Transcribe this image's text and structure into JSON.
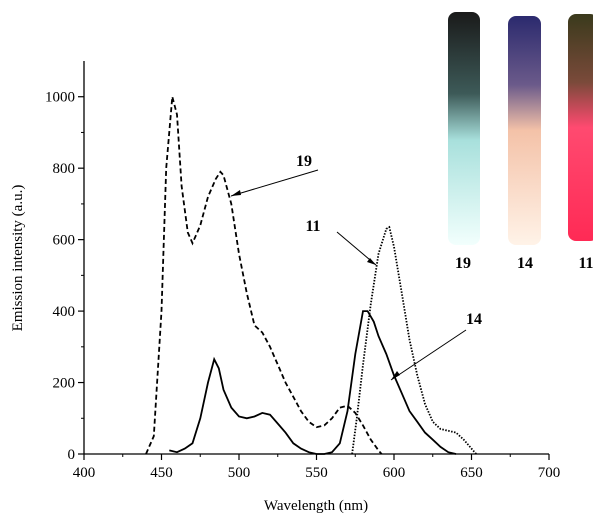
{
  "chart_data": {
    "type": "line",
    "x_label": "Wavelength (nm)",
    "y_label": "Emission intensity (a.u.)",
    "xlim": [
      400,
      700
    ],
    "ylim": [
      0,
      1100
    ],
    "xticks": [
      400,
      450,
      500,
      550,
      600,
      650,
      700
    ],
    "yticks": [
      0,
      200,
      400,
      600,
      800,
      1000
    ],
    "inset_labels": [
      "19",
      "14",
      "11"
    ],
    "series": [
      {
        "name": "19",
        "color": "#000000",
        "dash": "dashed",
        "x": [
          440,
          445,
          450,
          453,
          457,
          460,
          463,
          467,
          470,
          475,
          480,
          485,
          488,
          490,
          495,
          500,
          505,
          510,
          515,
          520,
          525,
          530,
          535,
          540,
          545,
          550,
          555,
          560,
          565,
          570,
          575,
          580,
          585,
          590,
          592
        ],
        "values": [
          0,
          50,
          400,
          800,
          1000,
          950,
          750,
          620,
          590,
          640,
          720,
          770,
          790,
          780,
          700,
          560,
          450,
          360,
          340,
          300,
          250,
          200,
          160,
          120,
          90,
          75,
          80,
          100,
          130,
          135,
          115,
          80,
          40,
          10,
          0
        ]
      },
      {
        "name": "14",
        "color": "#000000",
        "dash": "solid",
        "x": [
          455,
          460,
          465,
          470,
          475,
          480,
          484,
          487,
          490,
          495,
          500,
          505,
          510,
          515,
          520,
          525,
          530,
          535,
          540,
          545,
          550,
          555,
          560,
          565,
          570,
          575,
          580,
          583,
          587,
          590,
          595,
          600,
          605,
          610,
          615,
          620,
          625,
          630,
          635,
          640
        ],
        "values": [
          10,
          5,
          15,
          30,
          100,
          200,
          265,
          240,
          180,
          130,
          105,
          100,
          105,
          115,
          110,
          85,
          60,
          30,
          15,
          5,
          0,
          0,
          5,
          30,
          120,
          280,
          400,
          400,
          370,
          330,
          280,
          220,
          170,
          120,
          90,
          60,
          40,
          20,
          5,
          0
        ]
      },
      {
        "name": "11",
        "color": "#000000",
        "dash": "dotted",
        "x": [
          573,
          576,
          580,
          585,
          590,
          595,
          597,
          600,
          605,
          610,
          615,
          620,
          625,
          630,
          635,
          640,
          645,
          650,
          653
        ],
        "values": [
          0,
          100,
          250,
          420,
          560,
          630,
          635,
          580,
          450,
          320,
          220,
          140,
          90,
          70,
          65,
          60,
          40,
          15,
          0
        ]
      }
    ]
  }
}
